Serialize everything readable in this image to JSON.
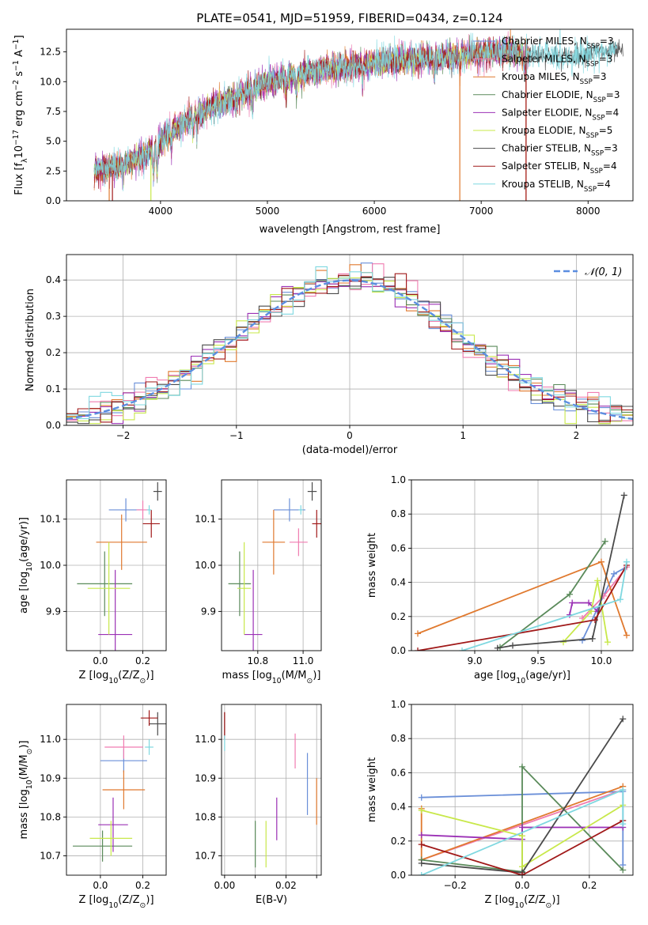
{
  "colors": {
    "c_miles": "#6a8fd8",
    "s_miles": "#f07cb0",
    "k_miles": "#e0792e",
    "c_elodie": "#5a8a5a",
    "s_elodie": "#9b30b5",
    "k_elodie": "#c8e84a",
    "c_stelib": "#4a4a4a",
    "s_stelib": "#a01818",
    "k_stelib": "#7fd8e0",
    "normal": "#5b8ee0",
    "grid": "#b0b0b0"
  },
  "chart_data": [
    {
      "id": "spectrum",
      "type": "line",
      "title": "PLATE=0541, MJD=51959, FIBERID=0434, z=0.124",
      "xlabel": "wavelength [Angstrom, rest frame]",
      "ylabel": "Flux [f",
      "ylabel_sub": "λ",
      "ylabel_tail": "10",
      "ylabel_sup": "−17",
      "ylabel_units": " erg cm",
      "ylabel_sup2": "−2",
      "ylabel_units2": " s",
      "ylabel_sup3": "−1",
      "ylabel_units3": " A",
      "ylabel_sup4": "−1",
      "ylabel_end": "]",
      "xlim": [
        3120,
        8420
      ],
      "ylim": [
        0,
        14.4
      ],
      "xticks": [
        4000,
        5000,
        6000,
        7000,
        8000
      ],
      "yticks": [
        0.0,
        2.5,
        5.0,
        7.5,
        10.0,
        12.5
      ],
      "ytick_labels": [
        "0.0",
        "2.5",
        "5.0",
        "7.5",
        "10.0",
        "12.5"
      ],
      "legend": [
        {
          "base": "Chabrier MILES, N",
          "sub": "SSP",
          "tail": "=3",
          "color": "c_miles",
          "marker": "+"
        },
        {
          "base": "Salpeter MILES, N",
          "sub": "SSP",
          "tail": "=3",
          "color": "s_miles"
        },
        {
          "base": "Kroupa MILES, N",
          "sub": "SSP",
          "tail": "=3",
          "color": "k_miles"
        },
        {
          "base": "Chabrier ELODIE, N",
          "sub": "SSP",
          "tail": "=3",
          "color": "c_elodie"
        },
        {
          "base": "Salpeter ELODIE, N",
          "sub": "SSP",
          "tail": "=4",
          "color": "s_elodie"
        },
        {
          "base": "Kroupa ELODIE, N",
          "sub": "SSP",
          "tail": "=5",
          "color": "k_elodie"
        },
        {
          "base": "Chabrier STELIB, N",
          "sub": "SSP",
          "tail": "=3",
          "color": "c_stelib"
        },
        {
          "base": "Salpeter STELIB, N",
          "sub": "SSP",
          "tail": "=4",
          "color": "s_stelib"
        },
        {
          "base": "Kroupa STELIB, N",
          "sub": "SSP",
          "tail": "=4",
          "color": "k_stelib"
        }
      ],
      "continuum": [
        [
          3380,
          2.6
        ],
        [
          3600,
          2.9
        ],
        [
          3800,
          3.6
        ],
        [
          3950,
          4.4
        ],
        [
          4100,
          5.8
        ],
        [
          4300,
          7.0
        ],
        [
          4500,
          8.0
        ],
        [
          4700,
          8.6
        ],
        [
          4900,
          9.5
        ],
        [
          5000,
          10.0
        ],
        [
          5200,
          10.4
        ],
        [
          5500,
          11.0
        ],
        [
          5800,
          11.3
        ],
        [
          6000,
          11.6
        ],
        [
          6300,
          11.9
        ],
        [
          6600,
          12.0
        ],
        [
          6900,
          12.3
        ],
        [
          7200,
          12.5
        ],
        [
          7500,
          12.3
        ],
        [
          7800,
          12.1
        ],
        [
          8100,
          12.5
        ],
        [
          8300,
          12.5
        ]
      ],
      "absorption_lines": [
        3650,
        3934,
        3968,
        4102,
        4304,
        4340,
        4861,
        5175,
        5270,
        5890,
        6563,
        6800,
        7400
      ]
    },
    {
      "id": "residuals",
      "type": "area",
      "xlabel": "(data-model)/error",
      "ylabel": "Normed distribution",
      "legend": "𝒩(0, 1)",
      "xlim": [
        -2.5,
        2.5
      ],
      "ylim": [
        0,
        0.47
      ],
      "xticks": [
        -2,
        -1,
        0,
        1,
        2
      ],
      "xtick_labels": [
        "−2",
        "−1",
        "0",
        "1",
        "2"
      ],
      "yticks": [
        0.0,
        0.1,
        0.2,
        0.3,
        0.4
      ],
      "ytick_labels": [
        "0.0",
        "0.1",
        "0.2",
        "0.3",
        "0.4"
      ],
      "bin_width": 0.1
    },
    {
      "id": "age-vs-z",
      "type": "scatter",
      "xlabel": "Z [log",
      "xlabel_sub": "10",
      "xlabel_tail": "(Z/Z",
      "xlabel_sub2": "⊙",
      "xlabel_end": ")]",
      "ylabel": "age  [log",
      "ylabel_sub": "10",
      "ylabel_tail": "(age/yr)]",
      "xlim": [
        -0.16,
        0.31
      ],
      "ylim": [
        9.815,
        10.185
      ],
      "xticks": [
        0.0,
        0.2
      ],
      "xtick_labels": [
        "0.0",
        "0.2"
      ],
      "yticks": [
        9.9,
        10.0,
        10.1
      ],
      "ytick_labels": [
        "9.9",
        "10.0",
        "10.1"
      ],
      "points": [
        {
          "x": 0.12,
          "y": 10.12,
          "xerr": 0.08,
          "yerr": 0.025,
          "color": "c_miles"
        },
        {
          "x": 0.2,
          "y": 10.12,
          "xerr": 0.03,
          "yerr": 0.02,
          "color": "s_miles"
        },
        {
          "x": 0.1,
          "y": 10.05,
          "xerr": 0.12,
          "yerr": 0.06,
          "color": "k_miles"
        },
        {
          "x": 0.02,
          "y": 9.96,
          "xerr": 0.13,
          "yerr": 0.07,
          "color": "c_elodie"
        },
        {
          "x": 0.07,
          "y": 9.85,
          "xerr": 0.08,
          "yerr": 0.14,
          "color": "s_elodie"
        },
        {
          "x": 0.04,
          "y": 9.95,
          "xerr": 0.1,
          "yerr": 0.1,
          "color": "k_elodie"
        },
        {
          "x": 0.27,
          "y": 10.16,
          "xerr": 0.02,
          "yerr": 0.02,
          "color": "c_stelib"
        },
        {
          "x": 0.24,
          "y": 10.09,
          "xerr": 0.04,
          "yerr": 0.03,
          "color": "s_stelib"
        },
        {
          "x": 0.23,
          "y": 10.12,
          "xerr": 0.01,
          "yerr": 0.01,
          "color": "k_stelib"
        }
      ]
    },
    {
      "id": "age-vs-mass",
      "type": "scatter",
      "xlabel": "mass [log",
      "xlabel_sub": "10",
      "xlabel_tail": "(M/M",
      "xlabel_sub2": "⊙",
      "xlabel_end": ")]",
      "xlim": [
        10.64,
        11.08
      ],
      "ylim": [
        9.815,
        10.185
      ],
      "xticks": [
        10.8,
        11.0
      ],
      "xtick_labels": [
        "10.8",
        "11.0"
      ],
      "yticks": [
        9.9,
        10.0,
        10.1
      ],
      "ytick_labels": [
        "9.9",
        "10.0",
        "10.1"
      ],
      "points": [
        {
          "x": 10.94,
          "y": 10.12,
          "xerr": 0.07,
          "yerr": 0.025,
          "color": "c_miles"
        },
        {
          "x": 10.98,
          "y": 10.05,
          "xerr": 0.04,
          "yerr": 0.03,
          "color": "s_miles"
        },
        {
          "x": 10.87,
          "y": 10.05,
          "xerr": 0.05,
          "yerr": 0.07,
          "color": "k_miles"
        },
        {
          "x": 10.72,
          "y": 9.96,
          "xerr": 0.05,
          "yerr": 0.07,
          "color": "c_elodie"
        },
        {
          "x": 10.78,
          "y": 9.85,
          "xerr": 0.04,
          "yerr": 0.14,
          "color": "s_elodie"
        },
        {
          "x": 10.74,
          "y": 9.95,
          "xerr": 0.03,
          "yerr": 0.1,
          "color": "k_elodie"
        },
        {
          "x": 11.04,
          "y": 10.16,
          "xerr": 0.02,
          "yerr": 0.02,
          "color": "c_stelib"
        },
        {
          "x": 11.06,
          "y": 10.09,
          "xerr": 0.02,
          "yerr": 0.03,
          "color": "s_stelib"
        },
        {
          "x": 10.99,
          "y": 10.12,
          "xerr": 0.01,
          "yerr": 0.01,
          "color": "k_stelib"
        }
      ]
    },
    {
      "id": "massweight-vs-age",
      "type": "line",
      "xlabel": "age  [log",
      "xlabel_sub": "10",
      "xlabel_tail": "(age/yr)]",
      "ylabel": "mass weight",
      "xlim": [
        8.5,
        10.25
      ],
      "ylim": [
        0,
        1
      ],
      "xticks": [
        9.0,
        9.5,
        10.0
      ],
      "xtick_labels": [
        "9.0",
        "9.5",
        "10.0"
      ],
      "yticks": [
        0,
        0.2,
        0.4,
        0.6,
        0.8,
        1.0
      ],
      "ytick_labels": [
        "0.0",
        "0.2",
        "0.4",
        "0.6",
        "0.8",
        "1.0"
      ],
      "series": [
        {
          "color": "c_miles",
          "x": [
            9.85,
            10.1,
            10.2
          ],
          "y": [
            0.06,
            0.45,
            0.49
          ]
        },
        {
          "color": "s_miles",
          "x": [
            9.85,
            10.02,
            10.2
          ],
          "y": [
            0.19,
            0.32,
            0.49
          ]
        },
        {
          "color": "k_miles",
          "x": [
            8.55,
            10.0,
            10.2
          ],
          "y": [
            0.1,
            0.52,
            0.09
          ]
        },
        {
          "color": "c_elodie",
          "x": [
            9.2,
            9.75,
            10.03
          ],
          "y": [
            0.02,
            0.33,
            0.64
          ]
        },
        {
          "color": "s_elodie",
          "x": [
            9.75,
            9.77,
            9.9,
            9.97
          ],
          "y": [
            0.21,
            0.28,
            0.28,
            0.23
          ]
        },
        {
          "color": "k_elodie",
          "x": [
            9.7,
            9.92,
            9.97,
            10.05
          ],
          "y": [
            0.05,
            0.23,
            0.41,
            0.05
          ]
        },
        {
          "color": "c_stelib",
          "x": [
            9.18,
            9.3,
            9.93,
            10.18
          ],
          "y": [
            0.015,
            0.03,
            0.07,
            0.91
          ]
        },
        {
          "color": "s_stelib",
          "x": [
            8.55,
            9.95,
            10.2
          ],
          "y": [
            0.0,
            0.18,
            0.5
          ]
        },
        {
          "color": "k_stelib",
          "x": [
            8.9,
            10.15,
            10.2
          ],
          "y": [
            0.0,
            0.3,
            0.52
          ]
        }
      ]
    },
    {
      "id": "mass-vs-z",
      "type": "scatter",
      "xlabel": "Z [log",
      "xlabel_sub": "10",
      "xlabel_tail": "(Z/Z",
      "xlabel_sub2": "⊙",
      "xlabel_end": ")]",
      "ylabel": "mass [log",
      "ylabel_sub": "10",
      "ylabel_tail": "(M/M",
      "ylabel_sub2": "⊙",
      "ylabel_end": ")]",
      "xlim": [
        -0.16,
        0.31
      ],
      "ylim": [
        10.65,
        11.09
      ],
      "xticks": [
        0.0,
        0.2
      ],
      "xtick_labels": [
        "0.0",
        "0.2"
      ],
      "yticks": [
        10.7,
        10.8,
        10.9,
        11.0
      ],
      "ytick_labels": [
        "10.7",
        "10.8",
        "10.9",
        "11.0"
      ],
      "points": [
        {
          "x": 0.11,
          "y": 10.945,
          "xerr": 0.11,
          "yerr": 0.03,
          "color": "c_miles"
        },
        {
          "x": 0.11,
          "y": 10.98,
          "xerr": 0.09,
          "yerr": 0.03,
          "color": "s_miles"
        },
        {
          "x": 0.11,
          "y": 10.87,
          "xerr": 0.1,
          "yerr": 0.05,
          "color": "k_miles"
        },
        {
          "x": 0.01,
          "y": 10.725,
          "xerr": 0.14,
          "yerr": 0.04,
          "color": "c_elodie"
        },
        {
          "x": 0.06,
          "y": 10.78,
          "xerr": 0.07,
          "yerr": 0.07,
          "color": "s_elodie"
        },
        {
          "x": 0.05,
          "y": 10.745,
          "xerr": 0.1,
          "yerr": 0.045,
          "color": "k_elodie"
        },
        {
          "x": 0.27,
          "y": 11.04,
          "xerr": 0.04,
          "yerr": 0.03,
          "color": "c_stelib"
        },
        {
          "x": 0.23,
          "y": 11.055,
          "xerr": 0.04,
          "yerr": 0.02,
          "color": "s_stelib"
        },
        {
          "x": 0.23,
          "y": 10.98,
          "xerr": 0.02,
          "yerr": 0.02,
          "color": "k_stelib"
        }
      ]
    },
    {
      "id": "mass-vs-ebv",
      "type": "scatter",
      "xlabel": "E(B-V)",
      "xlim": [
        -0.001,
        0.0315
      ],
      "ylim": [
        10.65,
        11.09
      ],
      "xticks": [
        0.0,
        0.01,
        0.02,
        0.03
      ],
      "xtick_labels": [
        "0.00",
        "",
        "0.02",
        ""
      ],
      "yticks": [
        10.7,
        10.8,
        10.9,
        11.0
      ],
      "ytick_labels": [
        "10.7",
        "10.8",
        "10.9",
        "11.0"
      ],
      "points": [
        {
          "x": 0.027,
          "y": 10.885,
          "xerr": 0,
          "yerr": 0.08,
          "color": "c_miles"
        },
        {
          "x": 0.023,
          "y": 10.97,
          "xerr": 0,
          "yerr": 0.045,
          "color": "s_miles"
        },
        {
          "x": 0.03,
          "y": 10.84,
          "xerr": 0,
          "yerr": 0.06,
          "color": "k_miles"
        },
        {
          "x": 0.01,
          "y": 10.73,
          "xerr": 0,
          "yerr": 0.06,
          "color": "c_elodie"
        },
        {
          "x": 0.017,
          "y": 10.795,
          "xerr": 0,
          "yerr": 0.055,
          "color": "s_elodie"
        },
        {
          "x": 0.0135,
          "y": 10.73,
          "xerr": 0,
          "yerr": 0.06,
          "color": "k_elodie"
        },
        {
          "x": 0.0,
          "y": 11.04,
          "xerr": 0,
          "yerr": 0.03,
          "color": "c_stelib"
        },
        {
          "x": 0.0,
          "y": 11.035,
          "xerr": 0,
          "yerr": 0.035,
          "color": "s_stelib"
        },
        {
          "x": 0.0,
          "y": 10.99,
          "xerr": 0,
          "yerr": 0.02,
          "color": "k_stelib"
        }
      ]
    },
    {
      "id": "massweight-vs-z",
      "type": "line",
      "xlabel": "Z [log",
      "xlabel_sub": "10",
      "xlabel_tail": "(Z/Z",
      "xlabel_sub2": "⊙",
      "xlabel_end": ")]",
      "ylabel": "mass weight",
      "xlim": [
        -0.33,
        0.33
      ],
      "ylim": [
        0,
        1
      ],
      "xticks": [
        -0.2,
        0.0,
        0.2
      ],
      "xtick_labels": [
        "−0.2",
        "0.0",
        "0.2"
      ],
      "yticks": [
        0,
        0.2,
        0.4,
        0.6,
        0.8,
        1.0
      ],
      "ytick_labels": [
        "0.0",
        "0.2",
        "0.4",
        "0.6",
        "0.8",
        "1.0"
      ],
      "series": [
        {
          "color": "c_miles",
          "x": [
            -0.3,
            0.3,
            0.3
          ],
          "y": [
            0.455,
            0.49,
            0.06
          ]
        },
        {
          "color": "s_miles",
          "x": [
            -0.3,
            0.3
          ],
          "y": [
            0.09,
            0.5
          ]
        },
        {
          "color": "k_miles",
          "x": [
            -0.3,
            -0.3,
            0.3
          ],
          "y": [
            0.39,
            0.09,
            0.52
          ]
        },
        {
          "color": "c_elodie",
          "x": [
            -0.3,
            0.0,
            0.0,
            0.3
          ],
          "y": [
            0.09,
            0.02,
            0.635,
            0.03
          ]
        },
        {
          "color": "s_elodie",
          "x": [
            -0.3,
            0.0,
            0.0,
            0.3
          ],
          "y": [
            0.235,
            0.21,
            0.28,
            0.28
          ]
        },
        {
          "color": "k_elodie",
          "x": [
            -0.3,
            0.0,
            0.0,
            0.3
          ],
          "y": [
            0.38,
            0.23,
            0.05,
            0.41
          ]
        },
        {
          "color": "c_stelib",
          "x": [
            -0.3,
            0.0,
            0.3
          ],
          "y": [
            0.07,
            0.015,
            0.915
          ]
        },
        {
          "color": "s_stelib",
          "x": [
            -0.3,
            0.0,
            0.3
          ],
          "y": [
            0.18,
            0.0,
            0.32
          ]
        },
        {
          "color": "k_stelib",
          "x": [
            -0.3,
            0.3,
            0.3
          ],
          "y": [
            0.0,
            0.5,
            0.3
          ]
        }
      ]
    }
  ]
}
